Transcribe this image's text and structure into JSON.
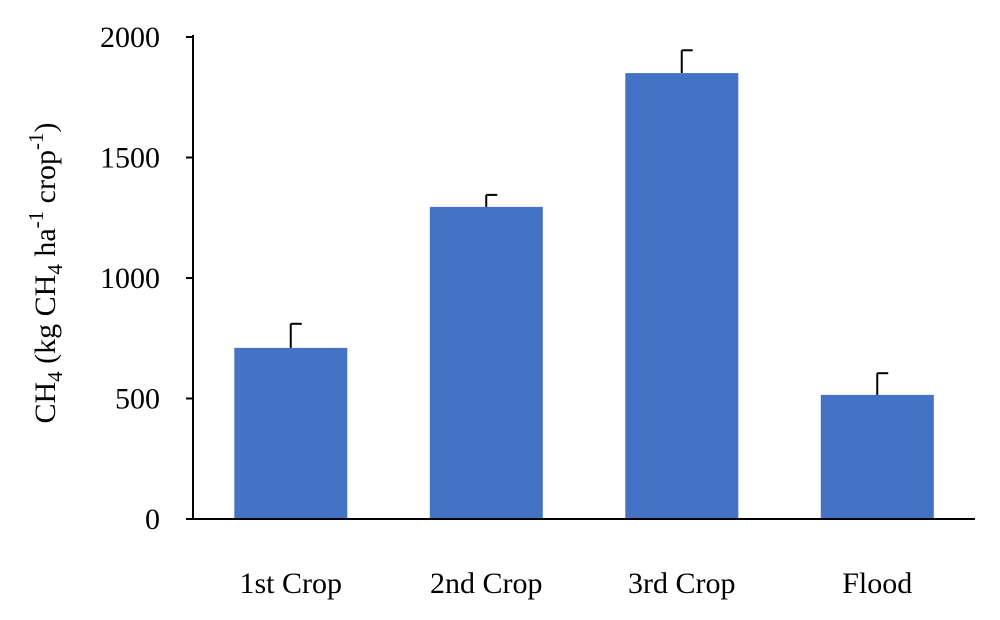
{
  "chart_data": {
    "type": "bar",
    "title": "",
    "xlabel": "",
    "ylabel": {
      "parts": [
        {
          "text": "CH",
          "style": "normal"
        },
        {
          "text": "4",
          "style": "sub"
        },
        {
          "text": " (kg CH",
          "style": "normal"
        },
        {
          "text": "4",
          "style": "sub"
        },
        {
          "text": " ha",
          "style": "normal"
        },
        {
          "text": "-1",
          "style": "sup"
        },
        {
          "text": " crop",
          "style": "normal"
        },
        {
          "text": "-1",
          "style": "sup"
        },
        {
          "text": ")",
          "style": "normal"
        }
      ]
    },
    "categories": [
      "1st Crop",
      "2nd Crop",
      "3rd Crop",
      "Flood"
    ],
    "values": [
      710,
      1295,
      1850,
      515
    ],
    "errors": [
      100,
      50,
      95,
      90
    ],
    "ylim": [
      0,
      2000
    ],
    "yticks": [
      0,
      500,
      1000,
      1500,
      2000
    ],
    "ytick_labels": [
      "0",
      "500",
      "1000",
      "1500",
      "2000"
    ],
    "grid": false,
    "legend": "none",
    "colors": {
      "bar": "#4472C4",
      "axis": "#000000",
      "error_bar": "#000000"
    }
  }
}
